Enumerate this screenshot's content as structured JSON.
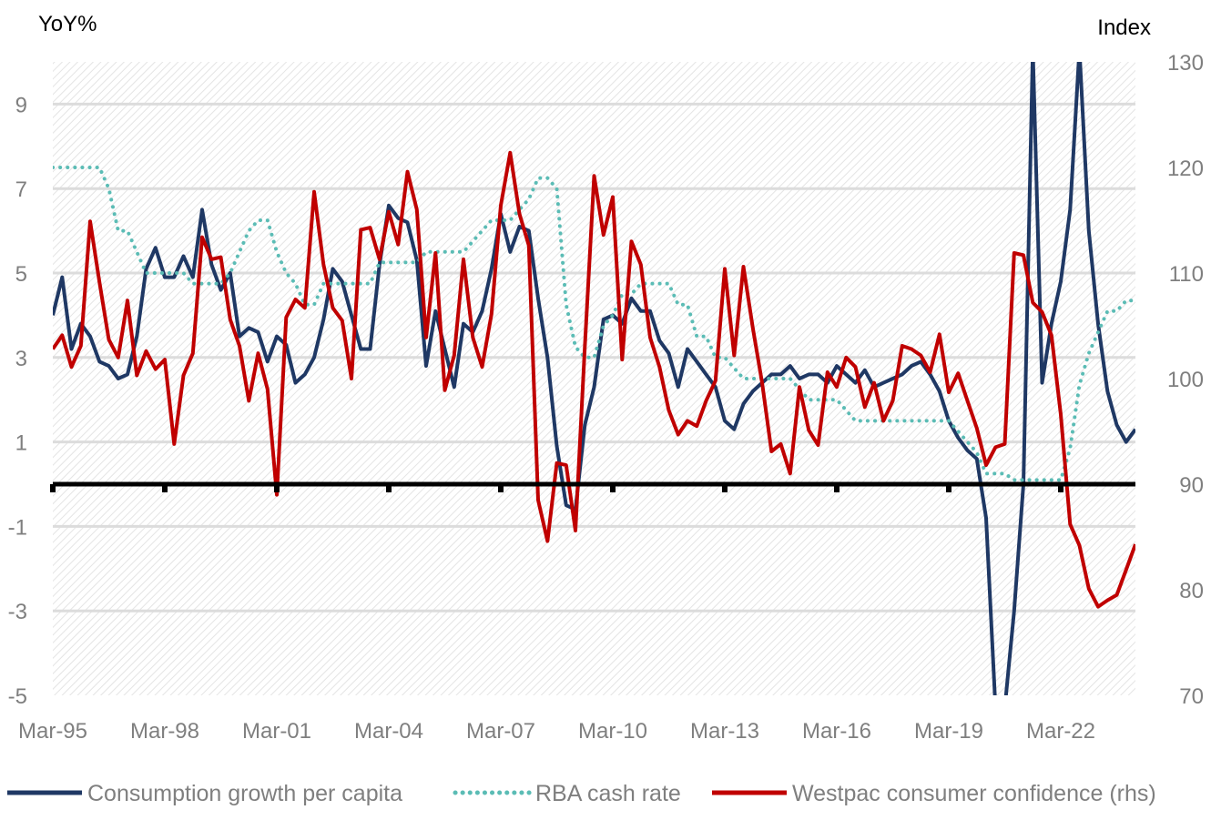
{
  "chart_data": {
    "type": "line",
    "ylabel_left": "YoY%",
    "ylabel_right": "Index",
    "ylim_left": [
      -5,
      10
    ],
    "ylim_right": [
      70,
      130
    ],
    "yticks_left": [
      9,
      7,
      5,
      3,
      1,
      -1,
      -3,
      -5
    ],
    "yticks_right": [
      130,
      120,
      110,
      100,
      90,
      80,
      70
    ],
    "xtick_labels": [
      "Mar-95",
      "Mar-98",
      "Mar-01",
      "Mar-04",
      "Mar-07",
      "Mar-10",
      "Mar-13",
      "Mar-16",
      "Mar-19",
      "Mar-22"
    ],
    "x_start": "Mar-95",
    "x_end": "Mar-24",
    "x_frequency": "quarterly",
    "grid": true,
    "legend_position": "bottom",
    "series": [
      {
        "name": "Consumption growth per capita",
        "axis": "left",
        "color": "#1f3864",
        "style": "solid",
        "values": [
          4.0,
          4.9,
          3.2,
          3.8,
          3.5,
          2.9,
          2.8,
          2.5,
          2.6,
          3.5,
          5.1,
          5.6,
          4.9,
          4.9,
          5.4,
          4.9,
          6.5,
          5.2,
          4.6,
          5.0,
          3.5,
          3.7,
          3.6,
          2.9,
          3.5,
          3.3,
          2.4,
          2.6,
          3.0,
          3.9,
          5.1,
          4.8,
          4.0,
          3.2,
          3.2,
          5.2,
          6.6,
          6.3,
          6.2,
          5.3,
          2.8,
          4.1,
          3.2,
          2.3,
          3.8,
          3.6,
          4.1,
          5.1,
          6.4,
          5.5,
          6.1,
          6.0,
          4.4,
          3.0,
          0.9,
          -0.5,
          -0.6,
          1.4,
          2.3,
          3.9,
          4.0,
          3.8,
          4.4,
          4.1,
          4.1,
          3.4,
          3.1,
          2.3,
          3.2,
          2.9,
          2.6,
          2.3,
          1.5,
          1.3,
          1.9,
          2.2,
          2.4,
          2.6,
          2.6,
          2.8,
          2.5,
          2.6,
          2.6,
          2.4,
          2.8,
          2.6,
          2.4,
          2.7,
          2.3,
          2.4,
          2.5,
          2.6,
          2.8,
          2.9,
          2.6,
          2.2,
          1.5,
          1.1,
          0.8,
          0.6,
          -0.8,
          -14,
          -6,
          -3,
          0,
          20,
          2.4,
          3.8,
          4.8,
          6.5,
          14,
          6.0,
          3.8,
          2.2,
          1.4,
          1.0,
          1.3
        ]
      },
      {
        "name": "RBA cash rate",
        "axis": "left",
        "color": "#5bbcb5",
        "style": "dotted",
        "values": [
          7.5,
          7.5,
          7.5,
          7.5,
          7.5,
          7.5,
          7.0,
          6.0,
          6.0,
          5.5,
          5.0,
          5.0,
          5.0,
          5.0,
          5.0,
          4.75,
          4.75,
          4.75,
          4.75,
          5.0,
          5.5,
          6.0,
          6.25,
          6.25,
          5.5,
          5.0,
          4.75,
          4.25,
          4.25,
          4.75,
          4.75,
          4.75,
          4.75,
          4.75,
          4.75,
          5.25,
          5.25,
          5.25,
          5.25,
          5.25,
          5.5,
          5.5,
          5.5,
          5.5,
          5.5,
          5.75,
          6.0,
          6.25,
          6.25,
          6.25,
          6.5,
          6.75,
          7.25,
          7.25,
          7.0,
          4.25,
          3.25,
          3.0,
          3.0,
          3.75,
          4.0,
          4.5,
          4.5,
          4.75,
          4.75,
          4.75,
          4.75,
          4.25,
          4.25,
          3.5,
          3.5,
          3.0,
          3.0,
          2.75,
          2.5,
          2.5,
          2.5,
          2.5,
          2.5,
          2.5,
          2.25,
          2.0,
          2.0,
          2.0,
          2.0,
          1.75,
          1.5,
          1.5,
          1.5,
          1.5,
          1.5,
          1.5,
          1.5,
          1.5,
          1.5,
          1.5,
          1.5,
          1.25,
          1.0,
          0.75,
          0.25,
          0.25,
          0.25,
          0.1,
          0.1,
          0.1,
          0.1,
          0.1,
          0.1,
          0.85,
          2.35,
          3.1,
          3.6,
          4.1,
          4.1,
          4.35,
          4.35
        ]
      },
      {
        "name": "Westpac consumer confidence (rhs)",
        "axis": "right",
        "color": "#c00000",
        "style": "solid",
        "values": [
          102.8,
          104.1,
          101.1,
          103.1,
          114.9,
          109.1,
          103.7,
          102.0,
          107.4,
          100.3,
          102.6,
          100.9,
          101.8,
          93.8,
          100.3,
          102.4,
          113.4,
          111.3,
          111.5,
          105.6,
          103.1,
          97.9,
          102.4,
          99.0,
          89.0,
          105.8,
          107.5,
          106.7,
          117.7,
          110.8,
          106.7,
          105.5,
          100.0,
          114.1,
          114.3,
          111.3,
          115.8,
          112.7,
          119.6,
          116.0,
          103.9,
          111.9,
          98.9,
          102.2,
          111.3,
          103.9,
          101.1,
          106.1,
          116.4,
          121.4,
          115.6,
          112.6,
          88.5,
          84.6,
          92.0,
          91.8,
          85.6,
          103.0,
          119.2,
          113.6,
          117.2,
          101.8,
          113.0,
          110.8,
          103.9,
          101.1,
          97.0,
          94.7,
          96.0,
          95.5,
          97.9,
          99.8,
          110.4,
          102.2,
          110.6,
          104.8,
          99.6,
          93.1,
          93.8,
          91.0,
          99.2,
          95.1,
          93.7,
          100.6,
          99.2,
          102.0,
          101.1,
          97.3,
          99.6,
          96.0,
          97.9,
          103.1,
          102.8,
          102.2,
          100.6,
          104.2,
          98.7,
          100.5,
          97.9,
          95.3,
          91.8,
          93.5,
          93.8,
          111.9,
          111.7,
          107.2,
          106.3,
          104.1,
          96.6,
          86.2,
          84.2,
          80.1,
          78.4,
          79.0,
          79.5,
          81.9,
          84.3
        ]
      }
    ]
  }
}
